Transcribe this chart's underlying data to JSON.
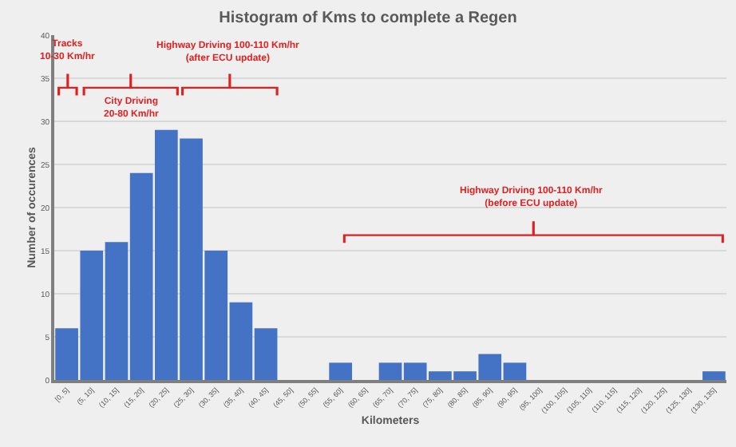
{
  "chart_data": {
    "type": "bar",
    "title": "Histogram of Kms to complete a Regen",
    "xlabel": "Kilometers",
    "ylabel": "Number of occurences",
    "categories": [
      "[0, 5]",
      "(5, 10]",
      "(10, 15]",
      "(15, 20]",
      "(20, 25]",
      "(25, 30]",
      "(30, 35]",
      "(35, 40]",
      "(40, 45]",
      "(45, 50]",
      "(50, 55]",
      "(55, 60]",
      "(60, 65]",
      "(65, 70]",
      "(70, 75]",
      "(75, 80]",
      "(80, 85]",
      "(85, 90]",
      "(90, 95]",
      "(95, 100]",
      "(100, 105]",
      "(105, 110]",
      "(110, 115]",
      "(115, 120]",
      "(120, 125]",
      "(125, 130]",
      "(130, 135]"
    ],
    "values": [
      6,
      15,
      16,
      24,
      29,
      28,
      15,
      9,
      6,
      0,
      0,
      2,
      0,
      2,
      2,
      1,
      1,
      3,
      2,
      0,
      0,
      0,
      0,
      0,
      0,
      0,
      1
    ],
    "color": "#4472c4",
    "ylim": [
      0,
      40
    ],
    "yticks": [
      0,
      5,
      10,
      15,
      20,
      25,
      30,
      35,
      40
    ],
    "grid": "y",
    "annotations": [
      "Tracks\n10-30 Km/hr",
      "City Driving\n20-80 Km/hr",
      "Highway Driving 100-110 Km/hr\n(after ECU update)",
      "Highway Driving 100-110 Km/hr\n(before ECU update)"
    ]
  }
}
